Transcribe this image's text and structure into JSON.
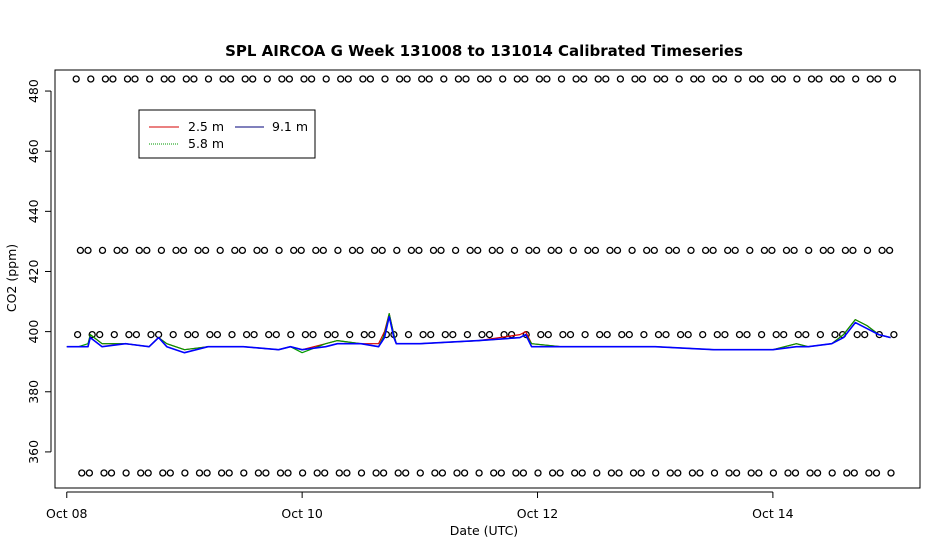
{
  "chart_data": {
    "type": "line",
    "title": "SPL AIRCOA G  Week 131008 to 131014  Calibrated Timeseries",
    "xlabel": "Date (UTC)",
    "ylabel": "CO2 (ppm)",
    "xlim": [
      -0.1,
      7.25
    ],
    "ylim": [
      348,
      487
    ],
    "x_ticks": [
      {
        "value": 0,
        "label": "Oct 08"
      },
      {
        "value": 2,
        "label": "Oct 10"
      },
      {
        "value": 4,
        "label": "Oct 12"
      },
      {
        "value": 6,
        "label": "Oct 14"
      }
    ],
    "y_ticks": [
      360,
      380,
      400,
      420,
      440,
      460,
      480
    ],
    "x_units_note": "days since Oct 08 00:00 UTC",
    "grid": false,
    "legend": {
      "placement": "top-left",
      "entries": [
        {
          "label": "2.5 m",
          "color": "#d40000"
        },
        {
          "label": "5.8 m",
          "color": "#009900"
        },
        {
          "label": "9.1 m",
          "color": "#0000ff"
        }
      ]
    },
    "calibration_levels": [
      {
        "name": "cal-level-484",
        "value": 484
      },
      {
        "name": "cal-level-427",
        "value": 427
      },
      {
        "name": "cal-level-399",
        "value": 399
      },
      {
        "name": "cal-level-353",
        "value": 353
      }
    ],
    "calibration_marker_spacing_days": 0.1,
    "series": [
      {
        "name": "2.5 m",
        "color": "#d40000",
        "x": [
          0.0,
          0.1,
          0.18,
          0.2,
          0.3,
          0.5,
          0.7,
          0.78,
          0.85,
          1.0,
          1.2,
          1.5,
          1.8,
          1.9,
          2.0,
          2.2,
          2.3,
          2.5,
          2.65,
          2.7,
          2.74,
          2.78,
          2.8,
          3.0,
          3.5,
          3.85,
          3.9,
          3.95,
          4.2,
          4.5,
          5.0,
          5.5,
          5.8,
          6.0,
          6.2,
          6.3,
          6.5,
          6.6,
          6.7,
          6.8,
          6.9,
          7.0
        ],
        "values": [
          395,
          395,
          395,
          399,
          396,
          396,
          395,
          398,
          396,
          394,
          395,
          395,
          394,
          395,
          394,
          396,
          397,
          396,
          396,
          400,
          406,
          399,
          396,
          396,
          397,
          399,
          400,
          396,
          395,
          395,
          395,
          394,
          394,
          394,
          396,
          395,
          396,
          399,
          404,
          402,
          399,
          398
        ]
      },
      {
        "name": "5.8 m",
        "color": "#009900",
        "x": [
          0.0,
          0.1,
          0.18,
          0.2,
          0.3,
          0.5,
          0.7,
          0.78,
          0.85,
          1.0,
          1.2,
          1.5,
          1.8,
          1.9,
          2.0,
          2.2,
          2.3,
          2.5,
          2.65,
          2.7,
          2.74,
          2.78,
          2.8,
          3.0,
          3.5,
          3.85,
          3.9,
          3.95,
          4.2,
          4.5,
          5.0,
          5.5,
          5.8,
          6.0,
          6.2,
          6.3,
          6.5,
          6.6,
          6.7,
          6.8,
          6.9,
          7.0
        ],
        "values": [
          395,
          395,
          396,
          399,
          396,
          396,
          395,
          398,
          396,
          394,
          395,
          395,
          394,
          395,
          393,
          396,
          397,
          396,
          395,
          399,
          406,
          399,
          396,
          396,
          397,
          398,
          399,
          396,
          395,
          395,
          395,
          394,
          394,
          394,
          396,
          395,
          396,
          399,
          404,
          402,
          399,
          398
        ]
      },
      {
        "name": "9.1 m",
        "color": "#0000ff",
        "x": [
          0.0,
          0.1,
          0.18,
          0.2,
          0.3,
          0.5,
          0.7,
          0.78,
          0.85,
          1.0,
          1.2,
          1.5,
          1.8,
          1.9,
          2.0,
          2.2,
          2.3,
          2.5,
          2.65,
          2.7,
          2.74,
          2.78,
          2.8,
          3.0,
          3.5,
          3.85,
          3.9,
          3.95,
          4.2,
          4.5,
          5.0,
          5.5,
          5.8,
          6.0,
          6.2,
          6.3,
          6.5,
          6.6,
          6.7,
          6.8,
          6.9,
          7.0
        ],
        "values": [
          395,
          395,
          395,
          398,
          395,
          396,
          395,
          398,
          395,
          393,
          395,
          395,
          394,
          395,
          394,
          395,
          396,
          396,
          395,
          398,
          405,
          398,
          396,
          396,
          397,
          398,
          399,
          395,
          395,
          395,
          395,
          394,
          394,
          394,
          395,
          395,
          396,
          398,
          403,
          401,
          399,
          398
        ]
      }
    ]
  }
}
